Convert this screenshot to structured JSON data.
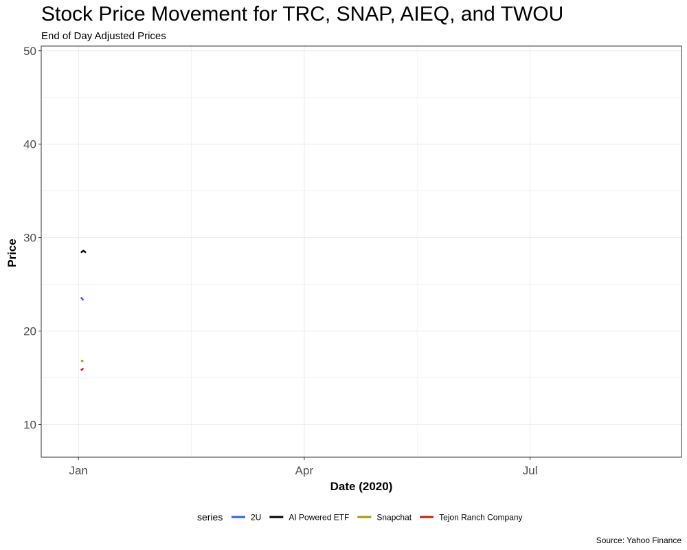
{
  "chart_data": {
    "type": "line",
    "title": "Stock Price Movement for TRC, SNAP, AIEQ, and TWOU",
    "subtitle": "End of Day Adjusted Prices",
    "xlabel": "Date (2020)",
    "ylabel": "Price",
    "caption": "Source: Yahoo Finance",
    "x_ticks": [
      {
        "label": "Jan",
        "date": "2020-01-01"
      },
      {
        "label": "Apr",
        "date": "2020-04-01"
      },
      {
        "label": "Jul",
        "date": "2020-07-01"
      }
    ],
    "y_ticks": [
      10,
      20,
      30,
      40,
      50
    ],
    "xlim": [
      "2019-12-17",
      "2020-08-31"
    ],
    "ylim": [
      6.5,
      50.5
    ],
    "grid": true,
    "legend": {
      "title": "series",
      "position": "bottom"
    },
    "series": [
      {
        "name": "2U",
        "color": "#2c61e0",
        "points": [
          {
            "x": "2020-01-02",
            "y": 23.6
          },
          {
            "x": "2020-01-03",
            "y": 23.3
          }
        ]
      },
      {
        "name": "AI Powered ETF",
        "color": "#000000",
        "points": [
          {
            "x": "2020-01-02",
            "y": 28.4
          },
          {
            "x": "2020-01-03",
            "y": 28.6
          },
          {
            "x": "2020-01-04",
            "y": 28.4
          }
        ]
      },
      {
        "name": "Snapchat",
        "color": "#a39a00",
        "points": [
          {
            "x": "2020-01-02",
            "y": 16.8
          },
          {
            "x": "2020-01-03",
            "y": 16.8
          }
        ]
      },
      {
        "name": "Tejon Ranch Company",
        "color": "#c41f0c",
        "points": [
          {
            "x": "2020-01-02",
            "y": 15.8
          },
          {
            "x": "2020-01-03",
            "y": 16.0
          }
        ]
      }
    ]
  }
}
